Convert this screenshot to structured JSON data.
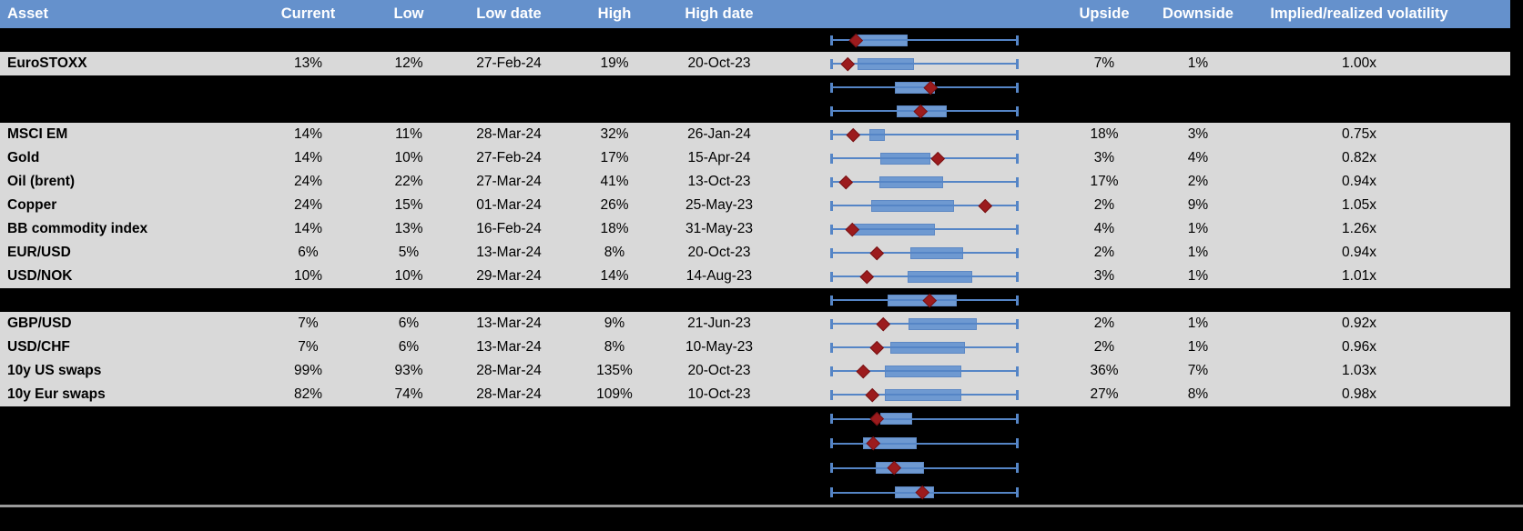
{
  "table": {
    "header": {
      "asset": "Asset",
      "current": "Current",
      "low": "Low",
      "low_date": "Low date",
      "high": "High",
      "high_date": "High date",
      "chart": "",
      "upside": "Upside",
      "downside": "Downside",
      "implied": "Implied/realized volatility"
    },
    "rows": [
      {
        "hidden": true,
        "asset": "",
        "current": "",
        "low": "",
        "low_date": "",
        "high": "",
        "high_date": "",
        "upside": "",
        "downside": "",
        "implied": "",
        "plot": {
          "box_start": 0.13,
          "box_end": 0.41,
          "marker": 0.135
        }
      },
      {
        "hidden": false,
        "asset": "EuroSTOXX",
        "current": "13%",
        "low": "12%",
        "low_date": "27-Feb-24",
        "high": "19%",
        "high_date": "20-Oct-23",
        "upside": "7%",
        "downside": "1%",
        "implied": "1.00x",
        "plot": {
          "box_start": 0.14,
          "box_end": 0.445,
          "marker": 0.09
        }
      },
      {
        "hidden": true,
        "asset": "",
        "current": "",
        "low": "",
        "low_date": "",
        "high": "",
        "high_date": "",
        "upside": "",
        "downside": "",
        "implied": "",
        "plot": {
          "box_start": 0.34,
          "box_end": 0.555,
          "marker": 0.535
        }
      },
      {
        "hidden": true,
        "asset": "",
        "current": "",
        "low": "",
        "low_date": "",
        "high": "",
        "high_date": "",
        "upside": "",
        "downside": "",
        "implied": "",
        "plot": {
          "box_start": 0.35,
          "box_end": 0.62,
          "marker": 0.48
        }
      },
      {
        "hidden": false,
        "asset": "MSCI EM",
        "current": "14%",
        "low": "11%",
        "low_date": "28-Mar-24",
        "high": "32%",
        "high_date": "26-Jan-24",
        "upside": "18%",
        "downside": "3%",
        "implied": "0.75x",
        "plot": {
          "box_start": 0.205,
          "box_end": 0.29,
          "marker": 0.12
        }
      },
      {
        "hidden": false,
        "asset": "Gold",
        "current": "14%",
        "low": "10%",
        "low_date": "27-Feb-24",
        "high": "17%",
        "high_date": "15-Apr-24",
        "upside": "3%",
        "downside": "4%",
        "implied": "0.82x",
        "plot": {
          "box_start": 0.265,
          "box_end": 0.53,
          "marker": 0.57
        }
      },
      {
        "hidden": false,
        "asset": "Oil (brent)",
        "current": "24%",
        "low": "22%",
        "low_date": "27-Mar-24",
        "high": "41%",
        "high_date": "13-Oct-23",
        "upside": "17%",
        "downside": "2%",
        "implied": "0.94x",
        "plot": {
          "box_start": 0.26,
          "box_end": 0.6,
          "marker": 0.08
        }
      },
      {
        "hidden": false,
        "asset": "Copper",
        "current": "24%",
        "low": "15%",
        "low_date": "01-Mar-24",
        "high": "26%",
        "high_date": "25-May-23",
        "upside": "2%",
        "downside": "9%",
        "implied": "1.05x",
        "plot": {
          "box_start": 0.215,
          "box_end": 0.66,
          "marker": 0.825
        }
      },
      {
        "hidden": false,
        "asset": "BB commodity index",
        "current": "14%",
        "low": "13%",
        "low_date": "16-Feb-24",
        "high": "18%",
        "high_date": "31-May-23",
        "upside": "4%",
        "downside": "1%",
        "implied": "1.26x",
        "plot": {
          "box_start": 0.12,
          "box_end": 0.555,
          "marker": 0.115
        }
      },
      {
        "hidden": false,
        "asset": "EUR/USD",
        "current": "6%",
        "low": "5%",
        "low_date": "13-Mar-24",
        "high": "8%",
        "high_date": "20-Oct-23",
        "upside": "2%",
        "downside": "1%",
        "implied": "0.94x",
        "plot": {
          "box_start": 0.425,
          "box_end": 0.705,
          "marker": 0.245
        }
      },
      {
        "hidden": false,
        "asset": "USD/NOK",
        "current": "10%",
        "low": "10%",
        "low_date": "29-Mar-24",
        "high": "14%",
        "high_date": "14-Aug-23",
        "upside": "3%",
        "downside": "1%",
        "implied": "1.01x",
        "plot": {
          "box_start": 0.41,
          "box_end": 0.755,
          "marker": 0.19
        }
      },
      {
        "hidden": true,
        "asset": "",
        "current": "",
        "low": "",
        "low_date": "",
        "high": "",
        "high_date": "",
        "upside": "",
        "downside": "",
        "implied": "",
        "plot": {
          "box_start": 0.3,
          "box_end": 0.675,
          "marker": 0.53
        }
      },
      {
        "hidden": false,
        "asset": "GBP/USD",
        "current": "7%",
        "low": "6%",
        "low_date": "13-Mar-24",
        "high": "9%",
        "high_date": "21-Jun-23",
        "upside": "2%",
        "downside": "1%",
        "implied": "0.92x",
        "plot": {
          "box_start": 0.415,
          "box_end": 0.78,
          "marker": 0.28
        }
      },
      {
        "hidden": false,
        "asset": "USD/CHF",
        "current": "7%",
        "low": "6%",
        "low_date": "13-Mar-24",
        "high": "8%",
        "high_date": "10-May-23",
        "upside": "2%",
        "downside": "1%",
        "implied": "0.96x",
        "plot": {
          "box_start": 0.315,
          "box_end": 0.715,
          "marker": 0.245
        }
      },
      {
        "hidden": false,
        "asset": "10y US swaps",
        "current": "99%",
        "low": "93%",
        "low_date": "28-Mar-24",
        "high": "135%",
        "high_date": "20-Oct-23",
        "upside": "36%",
        "downside": "7%",
        "implied": "1.03x",
        "plot": {
          "box_start": 0.29,
          "box_end": 0.7,
          "marker": 0.17
        }
      },
      {
        "hidden": false,
        "asset": "10y Eur swaps",
        "current": "82%",
        "low": "74%",
        "low_date": "28-Mar-24",
        "high": "109%",
        "high_date": "10-Oct-23",
        "upside": "27%",
        "downside": "8%",
        "implied": "0.98x",
        "plot": {
          "box_start": 0.29,
          "box_end": 0.7,
          "marker": 0.22
        }
      },
      {
        "hidden": true,
        "tall": true,
        "asset": "",
        "current": "",
        "low": "",
        "low_date": "",
        "high": "",
        "high_date": "",
        "upside": "",
        "downside": "",
        "implied": "",
        "plot": {
          "box_start": 0.265,
          "box_end": 0.435,
          "marker": 0.245
        }
      },
      {
        "hidden": true,
        "tall": true,
        "asset": "",
        "current": "",
        "low": "",
        "low_date": "",
        "high": "",
        "high_date": "",
        "upside": "",
        "downside": "",
        "implied": "",
        "plot": {
          "box_start": 0.17,
          "box_end": 0.46,
          "marker": 0.225
        }
      },
      {
        "hidden": true,
        "tall": true,
        "asset": "",
        "current": "",
        "low": "",
        "low_date": "",
        "high": "",
        "high_date": "",
        "upside": "",
        "downside": "",
        "implied": "",
        "plot": {
          "box_start": 0.24,
          "box_end": 0.5,
          "marker": 0.34
        }
      },
      {
        "hidden": true,
        "tall": true,
        "asset": "",
        "current": "",
        "low": "",
        "low_date": "",
        "high": "",
        "high_date": "",
        "upside": "",
        "downside": "",
        "implied": "",
        "plot": {
          "box_start": 0.34,
          "box_end": 0.55,
          "marker": 0.49
        }
      }
    ]
  },
  "colors": {
    "header_bg": "#6591cc",
    "row_bg": "#d9d9d9",
    "hidden_row_bg": "#000000",
    "box_fill": "#6e99d1",
    "box_border": "#5d88c4",
    "whisker": "#5585c6",
    "marker_fill": "#9c1b1d",
    "marker_border": "#771113",
    "separator": "#9a9a9a"
  }
}
